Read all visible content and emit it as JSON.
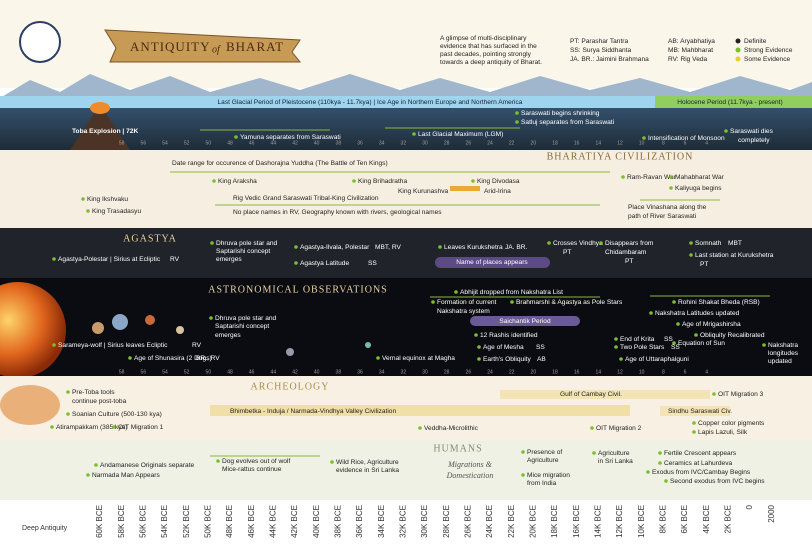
{
  "header": {
    "title_main": "ANTIQUITY",
    "title_of": "of",
    "title_end": "BHARAT",
    "description": [
      "A glimpse of multi-disciplinary",
      "evidence that has surfaced in the",
      "past decades, pointing strongly",
      "towards a deep antiquity of Bharat."
    ],
    "abbreviations": [
      "PT: Parashar Tantra",
      "SS: Surya Siddhanta",
      "JA. BR.: Jaimini Brahmana",
      "AB: Aryabhatiya",
      "MB: Mahbharat",
      "RV: Rig Veda"
    ],
    "evidence_legend": [
      "Definite",
      "Strong Evidence",
      "Some Evidence"
    ]
  },
  "ice_age": {
    "items": [
      "Last Glacial Period of Pleistocene (110kya - 11.7kya) | Ice Age in Northern Europe and Northern America",
      "Holocene Period (11.7kya - present)",
      "Toba Explosion | 72K",
      "Yamuna separates from Saraswati",
      "Last Glacial Maximum (LGM)",
      "Saraswati begins shrinking",
      "Satluj separates from Saraswati",
      "Intensification of Monsoon",
      "Saraswati dies",
      "completely"
    ]
  },
  "civilization": {
    "title": "BHARATIYA CIVILIZATION",
    "items": [
      "Date range for occurence of Dashorajna Yuddha (The Battle of Ten Kings)",
      "King Araksha",
      "King Brihadratha",
      "King Divodasa",
      "King Kurunashva",
      "Arid-Irina",
      "Rig Vedic Grand Saraswati Tribal-King Civilization",
      "No place names in RV, Geography known with rivers, geological names",
      "King Ikshvaku",
      "King Trasadasyu",
      "Ram-Ravan War",
      "Mahabharat War",
      "Kaliyuga begins",
      "Place Vinashana along the",
      "path of River Saraswati"
    ]
  },
  "agastya": {
    "title": "AGASTYA",
    "items": [
      "Agastya-Polestar | Sirius at Ecliptic",
      "Dhruva pole star and",
      "Saptarishi concept",
      "emerges",
      "Agastya-Ilvala, Polestar",
      "Agastya Latitude",
      "Leaves Kurukshetra",
      "Name of places appears",
      "Crosses Vindhya",
      "Disappears from",
      "Chidambaram",
      "Somnath",
      "Last station at Kurukshetra"
    ],
    "refs": [
      "RV",
      "MBT, RV",
      "SS",
      "JA. BR.",
      "PT",
      "PT",
      "MBT",
      "PT"
    ]
  },
  "astronomy": {
    "title": "ASTRONOMICAL OBSERVATIONS",
    "items": [
      "Dhruva pole star and",
      "Saptarishi concept",
      "emerges",
      "Sarameya-wolf | Sirius leaves Ecliptic",
      "Age of Shunasira (2 Dogs)",
      "Vernal equinox at Magha",
      "Abhijit dropped from Nakshatra List",
      "Formation of current",
      "Nakshatra system",
      "Brahmarshi & Agastya as Pole Stars",
      "Saichantik Period",
      "12 Rashis identified",
      "Age of Mesha",
      "Earth's Obliquity",
      "Rohini Shakat Bheda (RSB)",
      "Nakshatra Latitudes updated",
      "Age of Mrigashirsha",
      "Obliquity Recalibrated",
      "End of Krita",
      "Two Pole Stars",
      "Equation of Sun",
      "Nakshatra",
      "longitudes",
      "updated",
      "Age of Uttaraphalguni"
    ],
    "refs": [
      "RV",
      "BR., RV",
      "SS",
      "AB",
      "SS",
      "SS"
    ]
  },
  "archeology": {
    "title": "ARCHEOLOGY",
    "items": [
      "Pre-Toba tools",
      "continue post-toba",
      "Soanian Culture (500-130 kya)",
      "Atirampakkam (385 kya)",
      "OIT Migration 1",
      "Gulf of Cambay Civil.",
      "OIT Migration 3",
      "Bhimbetka - Induja / Narmada-Vindhya Valley Civilization",
      "Sindhu Saraswati Civ.",
      "Veddha-Microlithic",
      "OIT Migration 2",
      "Copper color pigments",
      "Lapis Lazuli, Silk"
    ]
  },
  "humans": {
    "title": "HUMANS",
    "subtitle": [
      "Migrations &",
      "Domestication"
    ],
    "items": [
      "Andamanese Originals separate",
      "Narmada Man Appears",
      "Dog evolves out of wolf",
      "Mice-rattus continue",
      "Wild Rice, Agriculture",
      "evidence in Sri Lanka",
      "Presence of",
      "Agriculture",
      "Mice migration",
      "from India",
      "Agriculture",
      "in Sri Lanka",
      "Fertile Crescent appears",
      "Ceramics at Lahurdeva",
      "Exodus from IVC/Cambay Begins",
      "Second exodus from IVC begins"
    ]
  },
  "axis": {
    "labels": [
      "60K BCE",
      "58K BCE",
      "56K BCE",
      "54K BCE",
      "52K BCE",
      "50K BCE",
      "48K BCE",
      "46K BCE",
      "44K BCE",
      "42K BCE",
      "40K BCE",
      "38K BCE",
      "36K BCE",
      "34K BCE",
      "32K BCE",
      "30K BCE",
      "28K BCE",
      "26K BCE",
      "24K BCE",
      "22K BCE",
      "20K BCE",
      "18K BCE",
      "16K BCE",
      "14K BCE",
      "12K BCE",
      "10K BCE",
      "8K BCE",
      "6K BCE",
      "4K BCE",
      "2K BCE",
      "0",
      "2000"
    ],
    "band_scale": [
      58,
      56,
      54,
      52,
      50,
      48,
      46,
      44,
      42,
      40,
      38,
      36,
      34,
      32,
      30,
      28,
      26,
      24,
      22,
      20,
      18,
      16,
      14,
      12,
      10,
      8,
      6,
      4
    ]
  },
  "footer": "Deep Antiquity"
}
